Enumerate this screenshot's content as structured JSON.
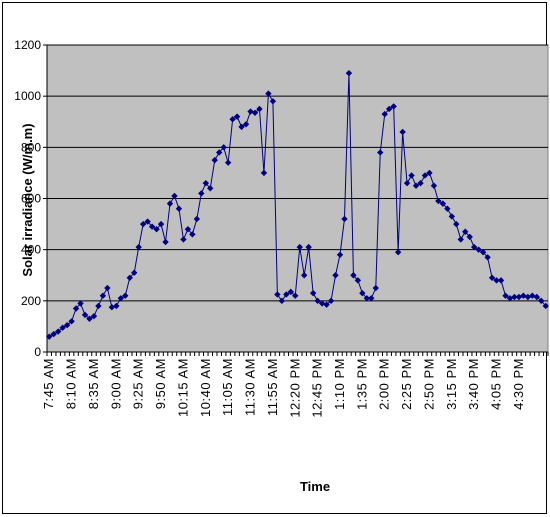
{
  "chart_data": {
    "type": "line",
    "title": "",
    "xlabel": "Time",
    "ylabel": "Solar irradiance (W/m.m)",
    "ylim": [
      0,
      1200
    ],
    "yticks": [
      0,
      200,
      400,
      600,
      800,
      1000,
      1200
    ],
    "grid": "horizontal",
    "legend": "none",
    "colors": {
      "plot_area": "#c0c0c0",
      "series": "#000080",
      "grid": "#000000"
    },
    "x_tick_labels": [
      "7:45 AM",
      "8:10 AM",
      "8:35 AM",
      "9:00 AM",
      "9:25 AM",
      "9:50 AM",
      "10:15 AM",
      "10:40 AM",
      "11:05 AM",
      "11:30 AM",
      "11:55 AM",
      "12:20 PM",
      "12:45 PM",
      "1:10 PM",
      "1:35 PM",
      "2:00 PM",
      "2:25 PM",
      "2:50 PM",
      "3:15 PM",
      "3:40 PM",
      "4:05 PM",
      "4:30 PM"
    ],
    "series": [
      {
        "marker": "diamond",
        "values": [
          60,
          70,
          80,
          95,
          105,
          120,
          170,
          190,
          145,
          130,
          140,
          180,
          220,
          250,
          175,
          180,
          210,
          220,
          290,
          310,
          410,
          500,
          510,
          490,
          480,
          500,
          430,
          580,
          610,
          560,
          440,
          480,
          460,
          520,
          620,
          660,
          640,
          750,
          780,
          800,
          740,
          910,
          920,
          880,
          890,
          940,
          935,
          950,
          700,
          1010,
          980,
          225,
          200,
          225,
          235,
          220,
          410,
          300,
          410,
          230,
          200,
          190,
          185,
          200,
          300,
          380,
          520,
          1090,
          300,
          280,
          230,
          210,
          210,
          250,
          780,
          930,
          950,
          960,
          390,
          860,
          660,
          690,
          650,
          660,
          690,
          700,
          650,
          590,
          580,
          560,
          530,
          500,
          440,
          470,
          450,
          410,
          400,
          390,
          370,
          290,
          280,
          280,
          220,
          210,
          215,
          215,
          220,
          215,
          220,
          215,
          200,
          180
        ]
      }
    ]
  }
}
